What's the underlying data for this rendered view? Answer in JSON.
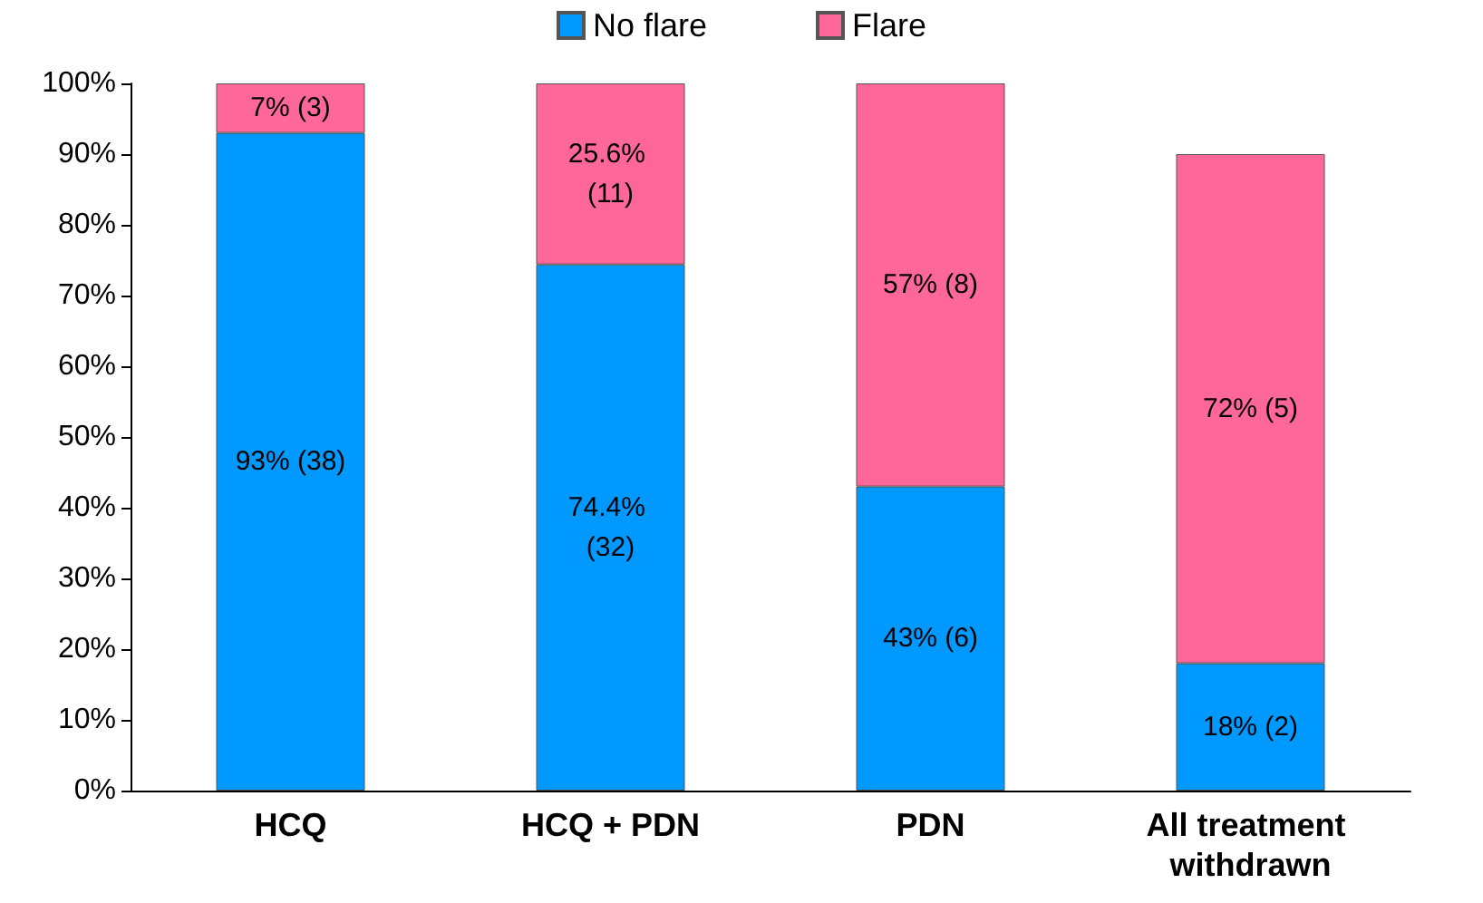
{
  "chart_data": {
    "type": "bar",
    "stacked": true,
    "categories": [
      "HCQ",
      "HCQ + PDN",
      "PDN",
      "All treatment withdrawn"
    ],
    "series": [
      {
        "name": "No flare",
        "color": "#0099ff",
        "values": [
          93,
          74.4,
          43,
          18
        ],
        "value_labels": [
          "93% (38)",
          "74.4% (32)",
          "43% (6)",
          "18% (2)"
        ]
      },
      {
        "name": "Flare",
        "color": "#ff6699",
        "values": [
          7,
          25.6,
          57,
          72
        ],
        "value_labels": [
          "7% (3)",
          "25.6% (11)",
          "57% (8)",
          "72% (5)"
        ]
      }
    ],
    "ylim": [
      0,
      100
    ],
    "yticks": [
      {
        "value": 0,
        "label": "0%"
      },
      {
        "value": 10,
        "label": "10%"
      },
      {
        "value": 20,
        "label": "20%"
      },
      {
        "value": 30,
        "label": "30%"
      },
      {
        "value": 40,
        "label": "40%"
      },
      {
        "value": 50,
        "label": "50%"
      },
      {
        "value": 60,
        "label": "60%"
      },
      {
        "value": 70,
        "label": "70%"
      },
      {
        "value": 80,
        "label": "80%"
      },
      {
        "value": 90,
        "label": "90%"
      },
      {
        "value": 100,
        "label": "100%"
      }
    ],
    "grid": false,
    "legend": "top"
  }
}
